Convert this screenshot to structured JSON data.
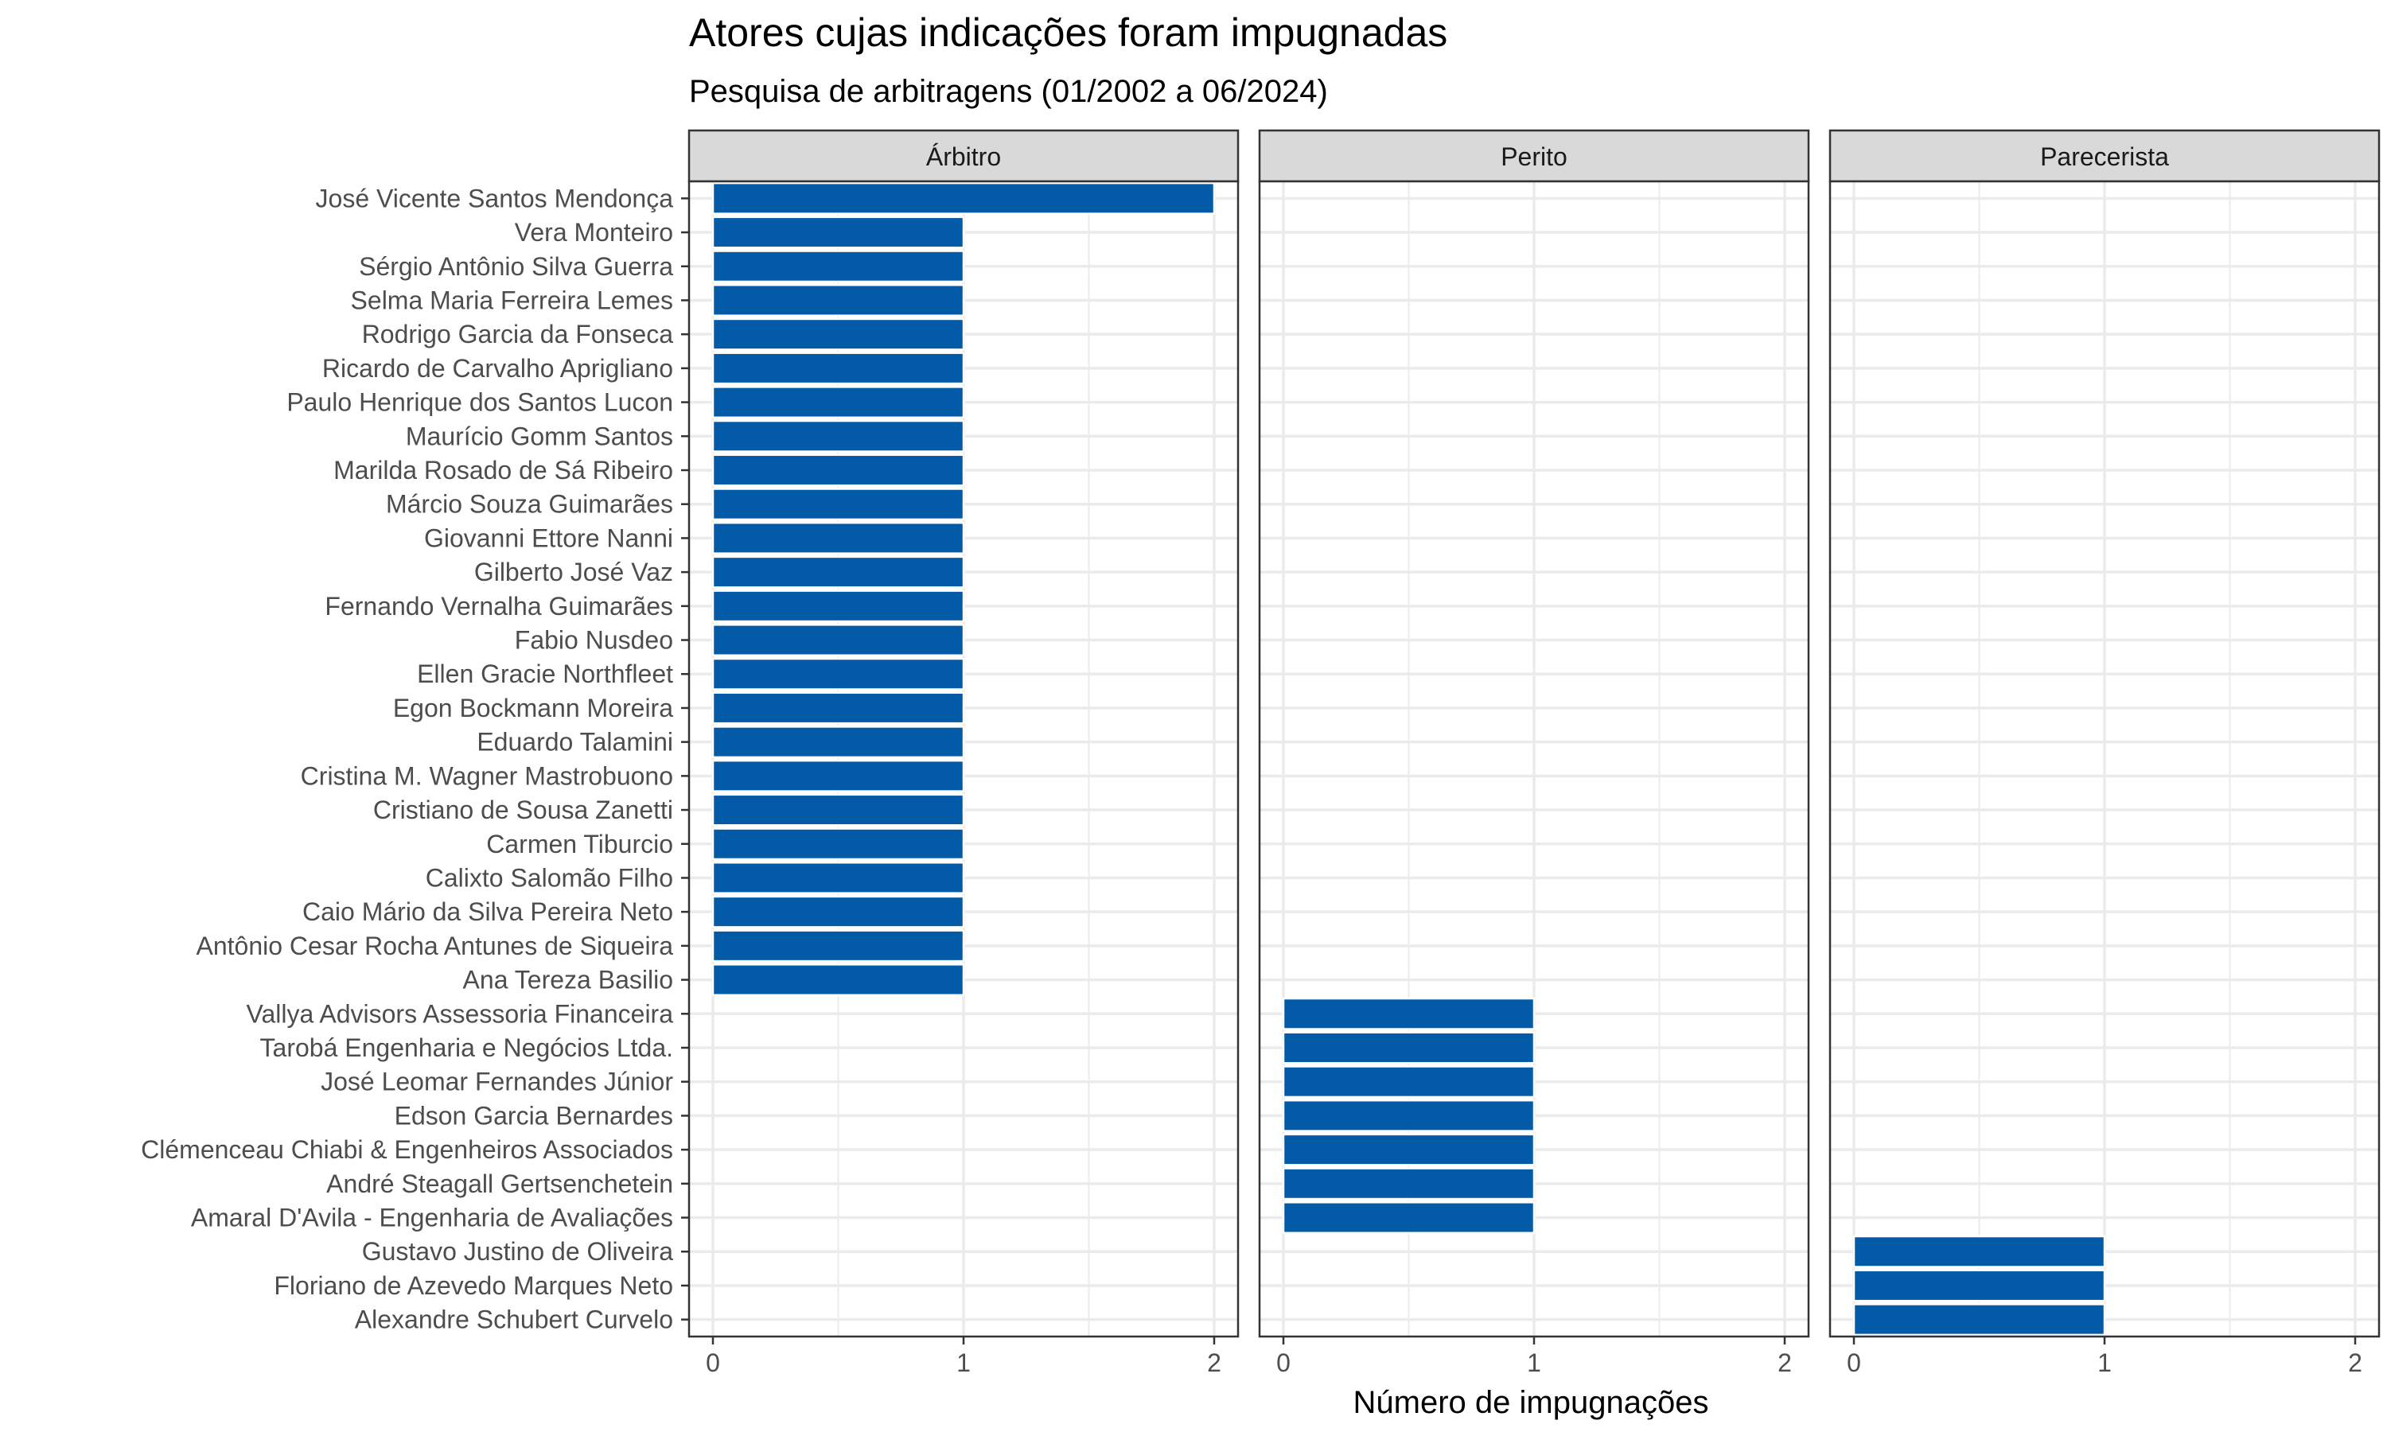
{
  "chart_data": {
    "type": "bar",
    "orientation": "horizontal",
    "title": "Atores cujas indicações foram impugnadas",
    "subtitle": "Pesquisa de arbitragens (01/2002 a 06/2024)",
    "xlabel": "Número de impugnações",
    "ylabel": "",
    "xlim": [
      0,
      2
    ],
    "x_ticks": [
      "0",
      "1",
      "2"
    ],
    "grid": true,
    "bar_color": "#035aa6",
    "facets": [
      "Árbitro",
      "Perito",
      "Parecerista"
    ],
    "categories": [
      "José Vicente Santos Mendonça",
      "Vera Monteiro",
      "Sérgio Antônio Silva Guerra",
      "Selma Maria Ferreira Lemes",
      "Rodrigo Garcia da Fonseca",
      "Ricardo de Carvalho Aprigliano",
      "Paulo Henrique dos Santos Lucon",
      "Maurício Gomm Santos",
      "Marilda Rosado de Sá Ribeiro",
      "Márcio Souza Guimarães",
      "Giovanni Ettore Nanni",
      "Gilberto José Vaz",
      "Fernando Vernalha Guimarães",
      "Fabio Nusdeo",
      "Ellen Gracie Northfleet",
      "Egon Bockmann Moreira",
      "Eduardo Talamini",
      "Cristina M. Wagner Mastrobuono",
      "Cristiano de Sousa Zanetti",
      "Carmen Tiburcio",
      "Calixto Salomão Filho",
      "Caio Mário da Silva Pereira Neto",
      "Antônio Cesar Rocha Antunes de Siqueira",
      "Ana Tereza Basilio",
      "Vallya Advisors Assessoria Financeira",
      "Tarobá Engenharia e Negócios Ltda.",
      "José Leomar Fernandes Júnior",
      "Edson Garcia Bernardes",
      "Clémenceau Chiabi & Engenheiros Associados",
      "André Steagall Gertsenchetein",
      "Amaral D'Avila - Engenharia de Avaliações",
      "Gustavo Justino de Oliveira",
      "Floriano de Azevedo Marques Neto",
      "Alexandre Schubert Curvelo"
    ],
    "bars": [
      {
        "facet": "Árbitro",
        "category": "José Vicente Santos Mendonça",
        "value": 2
      },
      {
        "facet": "Árbitro",
        "category": "Vera Monteiro",
        "value": 1
      },
      {
        "facet": "Árbitro",
        "category": "Sérgio Antônio Silva Guerra",
        "value": 1
      },
      {
        "facet": "Árbitro",
        "category": "Selma Maria Ferreira Lemes",
        "value": 1
      },
      {
        "facet": "Árbitro",
        "category": "Rodrigo Garcia da Fonseca",
        "value": 1
      },
      {
        "facet": "Árbitro",
        "category": "Ricardo de Carvalho Aprigliano",
        "value": 1
      },
      {
        "facet": "Árbitro",
        "category": "Paulo Henrique dos Santos Lucon",
        "value": 1
      },
      {
        "facet": "Árbitro",
        "category": "Maurício Gomm Santos",
        "value": 1
      },
      {
        "facet": "Árbitro",
        "category": "Marilda Rosado de Sá Ribeiro",
        "value": 1
      },
      {
        "facet": "Árbitro",
        "category": "Márcio Souza Guimarães",
        "value": 1
      },
      {
        "facet": "Árbitro",
        "category": "Giovanni Ettore Nanni",
        "value": 1
      },
      {
        "facet": "Árbitro",
        "category": "Gilberto José Vaz",
        "value": 1
      },
      {
        "facet": "Árbitro",
        "category": "Fernando Vernalha Guimarães",
        "value": 1
      },
      {
        "facet": "Árbitro",
        "category": "Fabio Nusdeo",
        "value": 1
      },
      {
        "facet": "Árbitro",
        "category": "Ellen Gracie Northfleet",
        "value": 1
      },
      {
        "facet": "Árbitro",
        "category": "Egon Bockmann Moreira",
        "value": 1
      },
      {
        "facet": "Árbitro",
        "category": "Eduardo Talamini",
        "value": 1
      },
      {
        "facet": "Árbitro",
        "category": "Cristina M. Wagner Mastrobuono",
        "value": 1
      },
      {
        "facet": "Árbitro",
        "category": "Cristiano de Sousa Zanetti",
        "value": 1
      },
      {
        "facet": "Árbitro",
        "category": "Carmen Tiburcio",
        "value": 1
      },
      {
        "facet": "Árbitro",
        "category": "Calixto Salomão Filho",
        "value": 1
      },
      {
        "facet": "Árbitro",
        "category": "Caio Mário da Silva Pereira Neto",
        "value": 1
      },
      {
        "facet": "Árbitro",
        "category": "Antônio Cesar Rocha Antunes de Siqueira",
        "value": 1
      },
      {
        "facet": "Árbitro",
        "category": "Ana Tereza Basilio",
        "value": 1
      },
      {
        "facet": "Perito",
        "category": "Vallya Advisors Assessoria Financeira",
        "value": 1
      },
      {
        "facet": "Perito",
        "category": "Tarobá Engenharia e Negócios Ltda.",
        "value": 1
      },
      {
        "facet": "Perito",
        "category": "José Leomar Fernandes Júnior",
        "value": 1
      },
      {
        "facet": "Perito",
        "category": "Edson Garcia Bernardes",
        "value": 1
      },
      {
        "facet": "Perito",
        "category": "Clémenceau Chiabi & Engenheiros Associados",
        "value": 1
      },
      {
        "facet": "Perito",
        "category": "André Steagall Gertsenchetein",
        "value": 1
      },
      {
        "facet": "Perito",
        "category": "Amaral D'Avila - Engenharia de Avaliações",
        "value": 1
      },
      {
        "facet": "Parecerista",
        "category": "Gustavo Justino de Oliveira",
        "value": 1
      },
      {
        "facet": "Parecerista",
        "category": "Floriano de Azevedo Marques Neto",
        "value": 1
      },
      {
        "facet": "Parecerista",
        "category": "Alexandre Schubert Curvelo",
        "value": 1
      }
    ]
  }
}
